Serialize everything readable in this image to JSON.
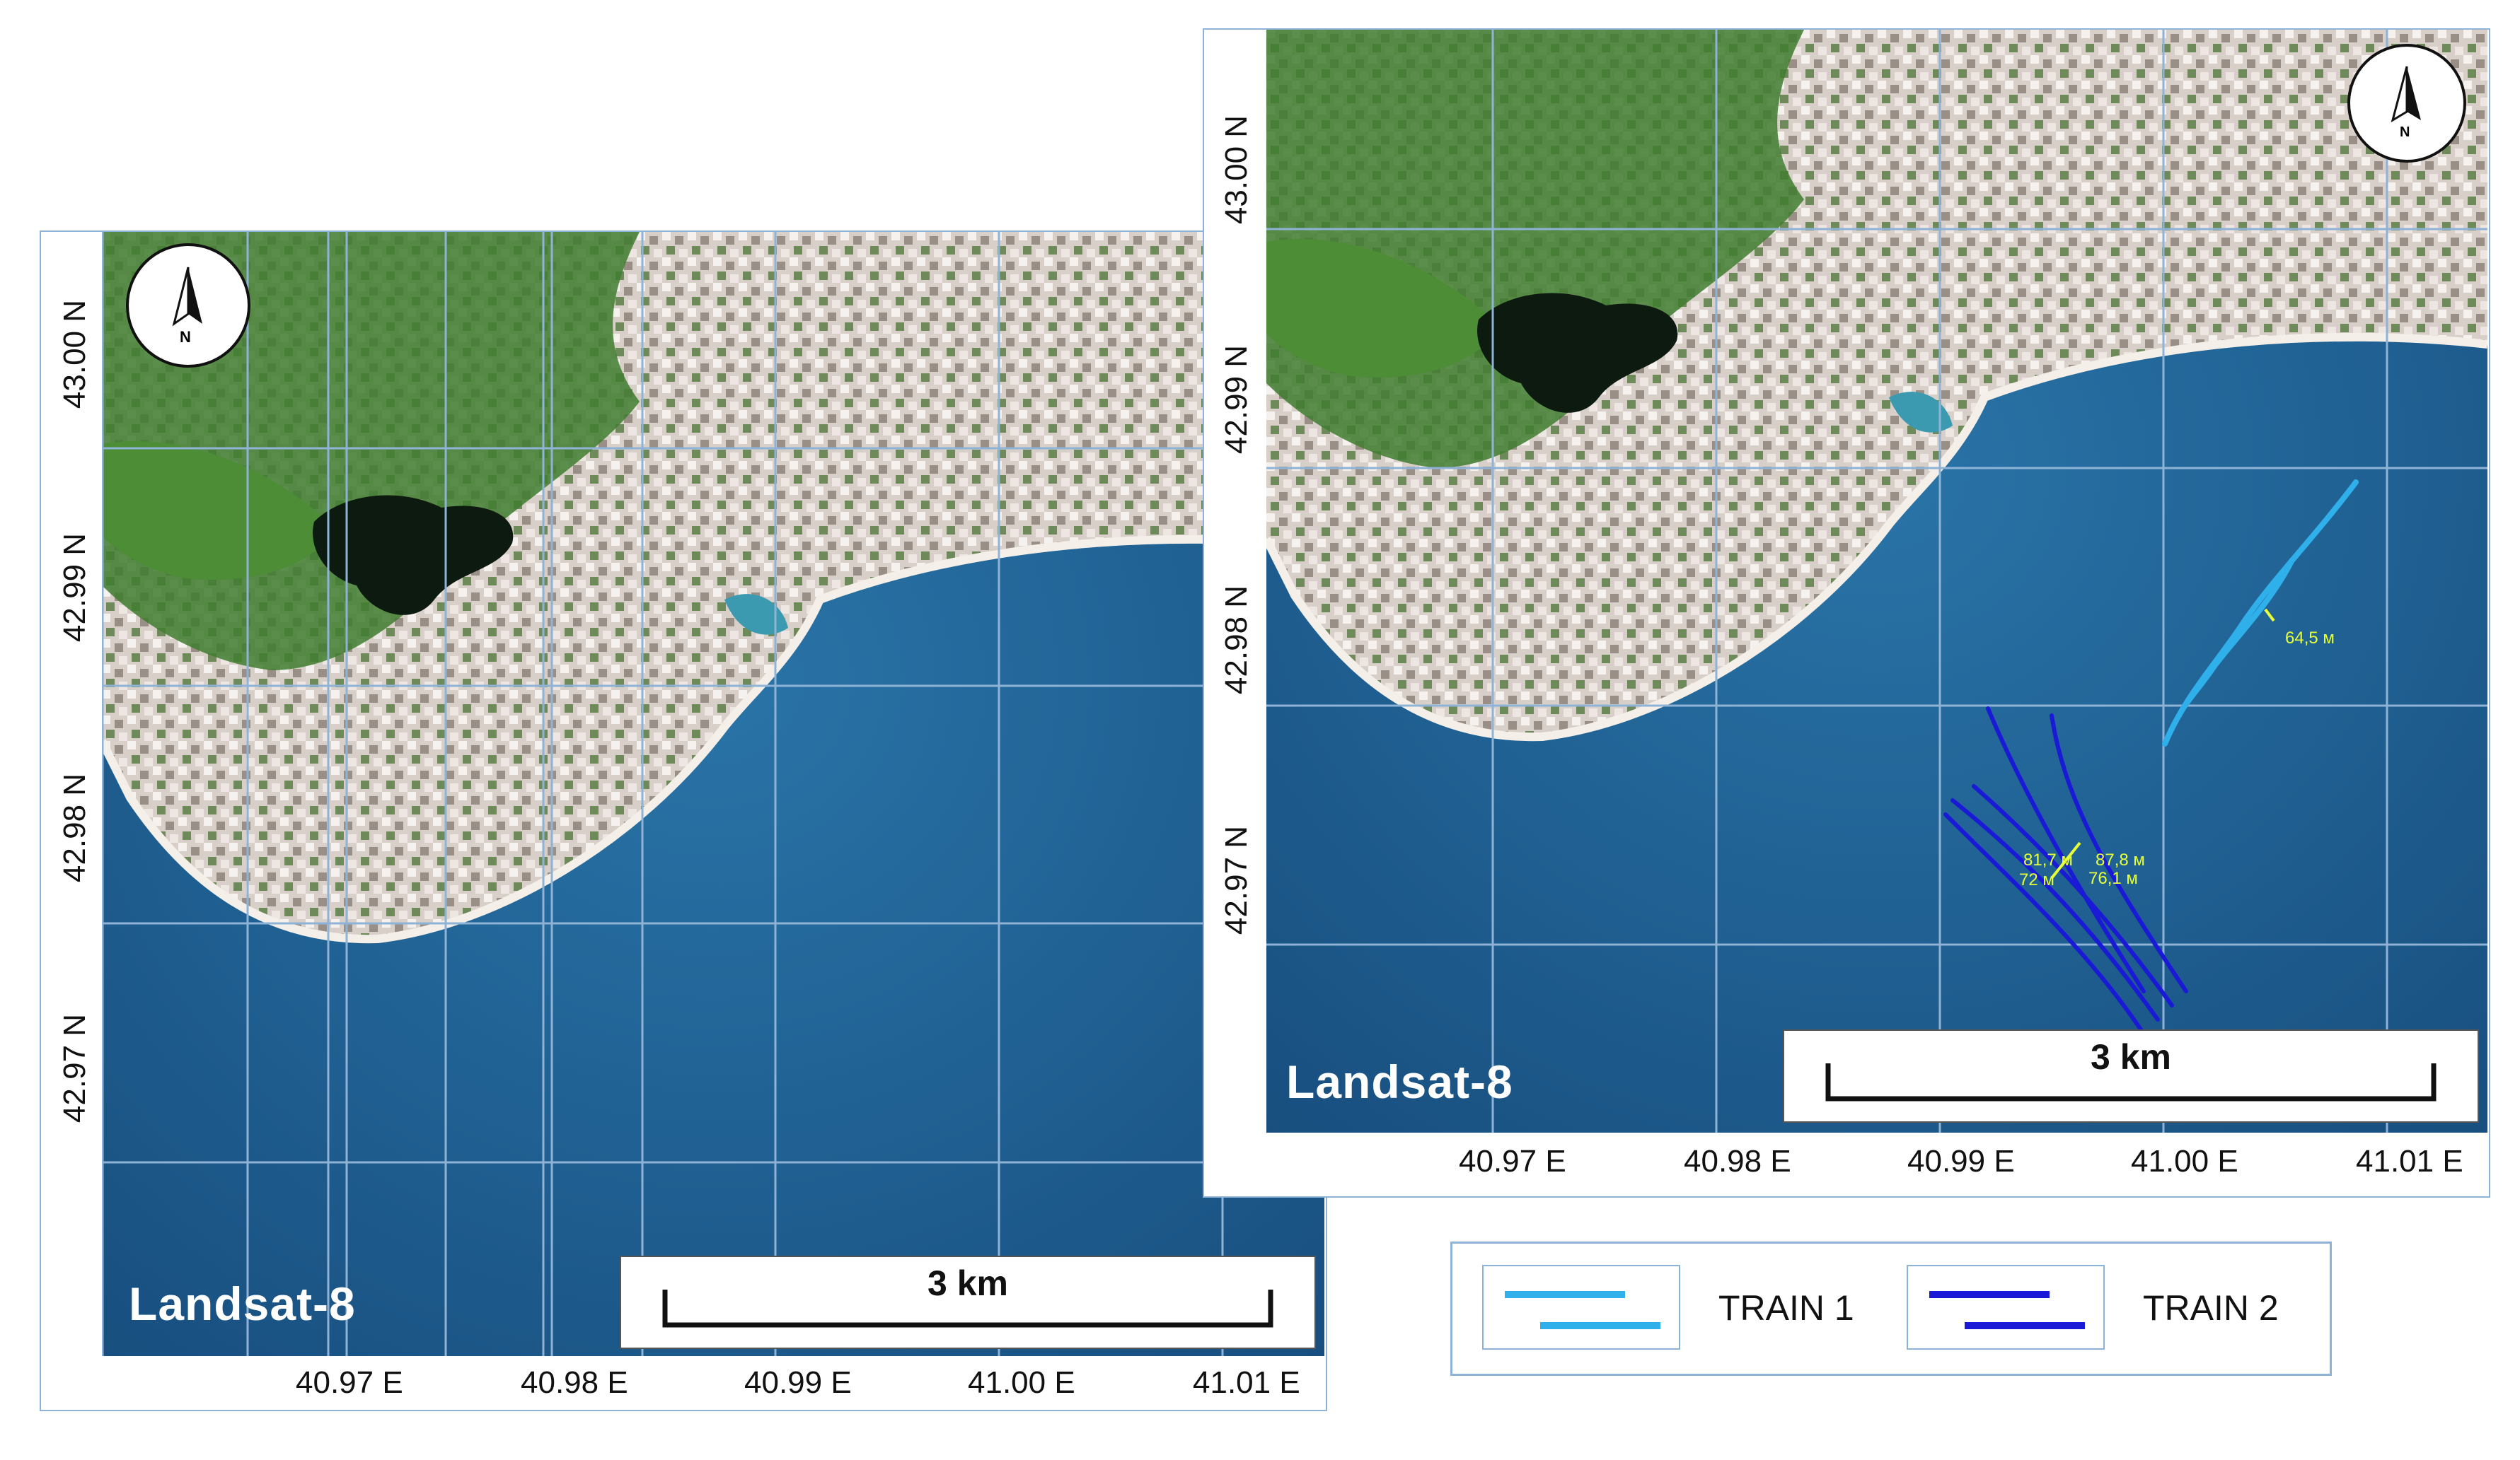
{
  "left_panel": {
    "sensor_label": "Landsat-8",
    "scale_label": "3 km",
    "compass_letter": "N",
    "lon_ticks": [
      "40.97 E",
      "40.98 E",
      "40.99 E",
      "41.00 E",
      "41.01 E"
    ],
    "lat_ticks": [
      "43.00 N",
      "42.99 N",
      "42.98 N",
      "42.97 N"
    ]
  },
  "right_panel": {
    "sensor_label": "Landsat-8",
    "scale_label": "3 km",
    "compass_letter": "N",
    "lon_ticks": [
      "40.97 E",
      "40.98 E",
      "40.99 E",
      "41.00 E",
      "41.01 E"
    ],
    "lat_ticks": [
      "43.00 N",
      "42.99 N",
      "42.98 N",
      "42.97 N"
    ],
    "measurements": {
      "train1_spacing": "64,5 м",
      "train2_a": "81,7 м",
      "train2_b": "87,8 м",
      "train2_c": "72 м",
      "train2_d": "76,1 м"
    }
  },
  "legend": {
    "items": [
      {
        "label": "TRAIN 1",
        "color": "#2fb0ea"
      },
      {
        "label": "TRAIN 2",
        "color": "#1a1ad6"
      }
    ]
  },
  "colors": {
    "sea": "#1c5f95",
    "land_green": "#3d7a2e",
    "urban": "#d8ccc6",
    "lake": "#0d1a10",
    "grid": "#8fb3d6"
  }
}
